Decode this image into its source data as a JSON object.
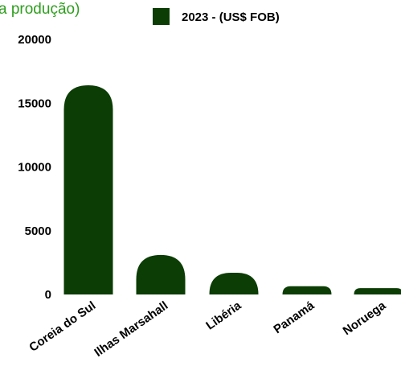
{
  "title_fragment": "a produção)",
  "colors": {
    "bar": "#0b3d04",
    "title": "#2e9e1e",
    "text": "#000000"
  },
  "chart_data": {
    "type": "bar",
    "categories": [
      "Coreia do Sul",
      "Ilhas Marsahall",
      "Libéria",
      "Panamá",
      "Noruega"
    ],
    "series": [
      {
        "name": "2023 - (US$ FOB)",
        "values": [
          16400,
          3100,
          1700,
          650,
          500
        ]
      }
    ],
    "ylim": [
      0,
      20000
    ],
    "yticks": [
      "0",
      "5000",
      "10000",
      "15000",
      "20000"
    ],
    "legend_position": "top",
    "grid": false
  }
}
